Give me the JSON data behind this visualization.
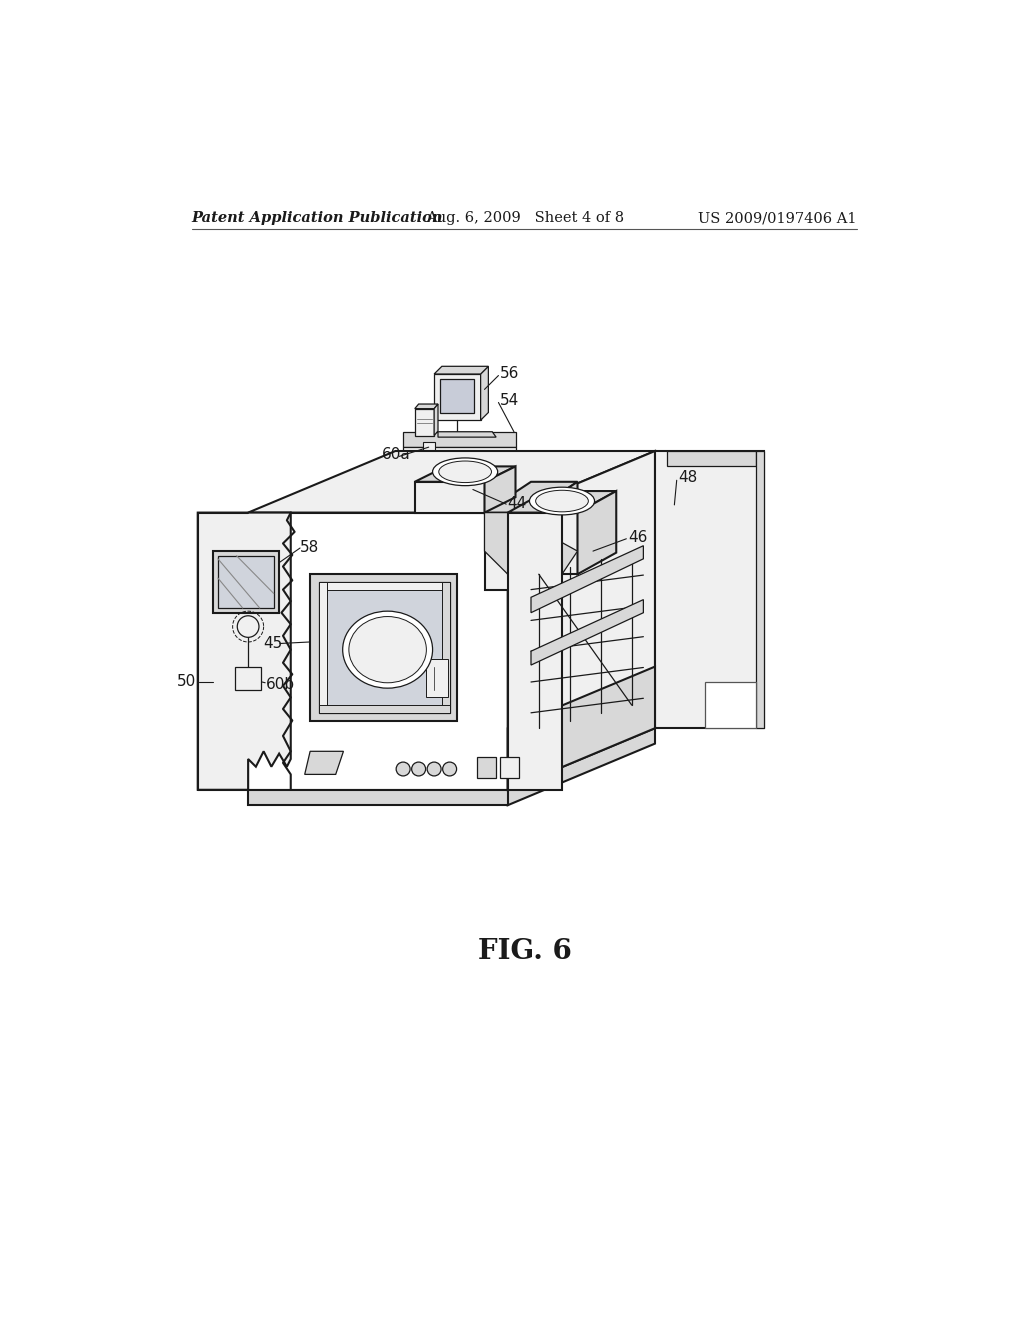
{
  "background_color": "#ffffff",
  "header_left": "Patent Application Publication",
  "header_center": "Aug. 6, 2009   Sheet 4 of 8",
  "header_right": "US 2009/0197406 A1",
  "figure_label": "FIG. 6",
  "label_fontsize": 11,
  "header_fontsize": 10.5,
  "fig_label_fontsize": 20
}
